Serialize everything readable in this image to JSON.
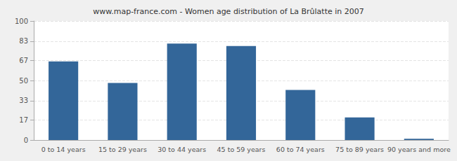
{
  "chart_data": {
    "type": "bar",
    "title": "www.map-france.com - Women age distribution of La Brûlatte in 2007",
    "categories": [
      "0 to 14 years",
      "15 to 29 years",
      "30 to 44 years",
      "45 to 59 years",
      "60 to 74 years",
      "75 to 89 years",
      "90 years and more"
    ],
    "values": [
      66,
      48,
      81,
      79,
      42,
      19,
      1
    ],
    "color": "#336699",
    "ylim": [
      0,
      100
    ],
    "yticks": [
      0,
      17,
      33,
      50,
      67,
      83,
      100
    ],
    "grid": true
  }
}
